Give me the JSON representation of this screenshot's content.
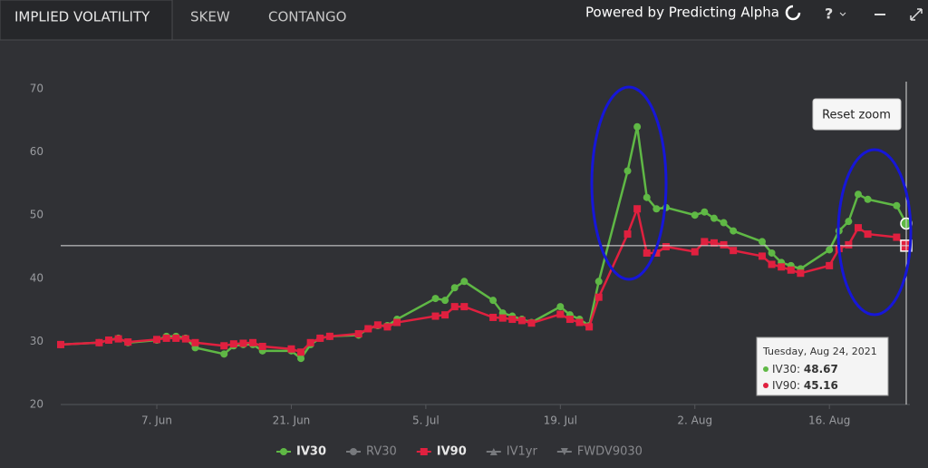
{
  "tabs": [
    "IMPLIED VOLATILITY",
    "SKEW",
    "CONTANGO"
  ],
  "brand": "Powered by Predicting Alpha",
  "chart_data": {
    "type": "line",
    "reset_zoom": "Reset zoom",
    "x": [
      "2021-05-28",
      "2021-06-01",
      "2021-06-02",
      "2021-06-03",
      "2021-06-04",
      "2021-06-07",
      "2021-06-08",
      "2021-06-09",
      "2021-06-10",
      "2021-06-11",
      "2021-06-14",
      "2021-06-15",
      "2021-06-16",
      "2021-06-17",
      "2021-06-18",
      "2021-06-21",
      "2021-06-22",
      "2021-06-23",
      "2021-06-24",
      "2021-06-25",
      "2021-06-28",
      "2021-06-29",
      "2021-06-30",
      "2021-07-01",
      "2021-07-02",
      "2021-07-06",
      "2021-07-07",
      "2021-07-08",
      "2021-07-09",
      "2021-07-12",
      "2021-07-13",
      "2021-07-14",
      "2021-07-15",
      "2021-07-16",
      "2021-07-19",
      "2021-07-20",
      "2021-07-21",
      "2021-07-22",
      "2021-07-23",
      "2021-07-26",
      "2021-07-27",
      "2021-07-28",
      "2021-07-29",
      "2021-07-30",
      "2021-08-02",
      "2021-08-03",
      "2021-08-04",
      "2021-08-05",
      "2021-08-06",
      "2021-08-09",
      "2021-08-10",
      "2021-08-11",
      "2021-08-12",
      "2021-08-13",
      "2021-08-16",
      "2021-08-17",
      "2021-08-18",
      "2021-08-19",
      "2021-08-20",
      "2021-08-23",
      "2021-08-24"
    ],
    "series": [
      {
        "name": "IV30",
        "color": "#5fb845",
        "marker": "circle",
        "values": [
          29.5,
          29.8,
          30.2,
          30.5,
          29.8,
          30.2,
          30.8,
          30.8,
          30.5,
          29,
          28,
          29.3,
          29.5,
          29.5,
          28.5,
          28.5,
          27.3,
          29.5,
          30.5,
          30.8,
          31,
          32,
          32.5,
          32.5,
          33.5,
          36.8,
          36.5,
          38.5,
          39.5,
          36.5,
          34.5,
          34,
          33.5,
          33,
          35.5,
          34.2,
          33.5,
          32.5,
          39.5,
          57,
          64,
          52.8,
          51,
          51.2,
          50,
          50.5,
          49.5,
          48.8,
          47.5,
          45.8,
          44,
          42.5,
          42,
          41.5,
          44.5,
          47.5,
          49,
          53.3,
          52.5,
          51.5,
          48.67
        ]
      },
      {
        "name": "IV90",
        "color": "#e0203f",
        "marker": "square",
        "values": [
          29.5,
          29.8,
          30.2,
          30.4,
          29.9,
          30.3,
          30.5,
          30.5,
          30.4,
          29.8,
          29.3,
          29.6,
          29.7,
          29.8,
          29.2,
          28.8,
          28.3,
          29.8,
          30.5,
          30.8,
          31.2,
          32,
          32.6,
          32.3,
          33,
          34,
          34.2,
          35.5,
          35.5,
          33.8,
          33.7,
          33.5,
          33.3,
          32.9,
          34.3,
          33.5,
          33,
          32.3,
          37,
          47,
          51,
          44,
          44,
          45,
          44.2,
          45.8,
          45.6,
          45.3,
          44.4,
          43.5,
          42.2,
          41.8,
          41.3,
          40.8,
          42,
          44.7,
          45.3,
          48,
          47,
          46.5,
          45.16
        ]
      }
    ],
    "legend_inactive": [
      {
        "name": "RV30",
        "marker": "circle"
      },
      {
        "name": "IV1yr",
        "marker": "triangle"
      },
      {
        "name": "FWDV9030",
        "marker": "triangle-down"
      }
    ],
    "legend_order": [
      "IV30",
      "RV30",
      "IV90",
      "IV1yr",
      "FWDV9030"
    ],
    "xlim": [
      "2021-05-28",
      "2021-08-24"
    ],
    "xticks": [
      {
        "value": "2021-06-07",
        "label": "7. Jun"
      },
      {
        "value": "2021-06-21",
        "label": "21. Jun"
      },
      {
        "value": "2021-07-05",
        "label": "5. Jul"
      },
      {
        "value": "2021-07-19",
        "label": "19. Jul"
      },
      {
        "value": "2021-08-02",
        "label": "2. Aug"
      },
      {
        "value": "2021-08-16",
        "label": "16. Aug"
      }
    ],
    "ylim": [
      20,
      70
    ],
    "yticks": [
      20,
      30,
      40,
      50,
      60,
      70
    ],
    "grid": false,
    "tooltip": {
      "date": "Tuesday, Aug 24, 2021",
      "index": 60
    }
  }
}
